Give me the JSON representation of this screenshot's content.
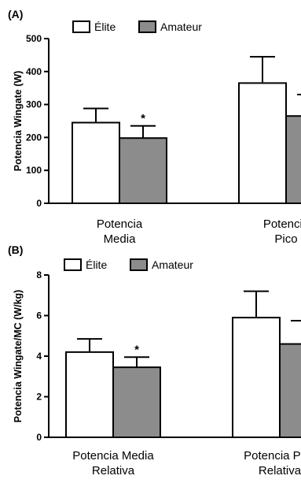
{
  "chart_data": [
    {
      "panel": "(A)",
      "type": "bar",
      "ylabel": "Potencia Wingate (W)",
      "ylim": [
        0,
        500
      ],
      "yticks": [
        "0",
        "100",
        "200",
        "300",
        "400",
        "500"
      ],
      "categories": [
        [
          "Potencia",
          "Media"
        ],
        [
          "Potencia",
          "Pico"
        ]
      ],
      "series": [
        {
          "name": "Élite",
          "color": "#ffffff",
          "values": [
            245,
            365
          ],
          "errors": [
            43,
            80
          ]
        },
        {
          "name": "Amateur",
          "color": "#8c8c8c",
          "values": [
            198,
            265
          ],
          "errors": [
            37,
            65
          ]
        }
      ],
      "annotations": [
        "*",
        "*"
      ],
      "legend": "top-left",
      "grid": false
    },
    {
      "panel": "(B)",
      "type": "bar",
      "ylabel": "Potencia Wingate/MC (W/kg)",
      "ylim": [
        0,
        8
      ],
      "yticks": [
        "0",
        "2",
        "4",
        "6",
        "8"
      ],
      "categories": [
        [
          "Potencia Media",
          "Relativa"
        ],
        [
          "Potencia Pico",
          "Relativa"
        ]
      ],
      "series": [
        {
          "name": "Élite",
          "color": "#ffffff",
          "values": [
            4.2,
            5.9
          ],
          "errors": [
            0.65,
            1.3
          ]
        },
        {
          "name": "Amateur",
          "color": "#8c8c8c",
          "values": [
            3.45,
            4.6
          ],
          "errors": [
            0.5,
            1.15
          ]
        }
      ],
      "annotations": [
        "*",
        "*"
      ],
      "legend": "top-left",
      "grid": false
    }
  ]
}
